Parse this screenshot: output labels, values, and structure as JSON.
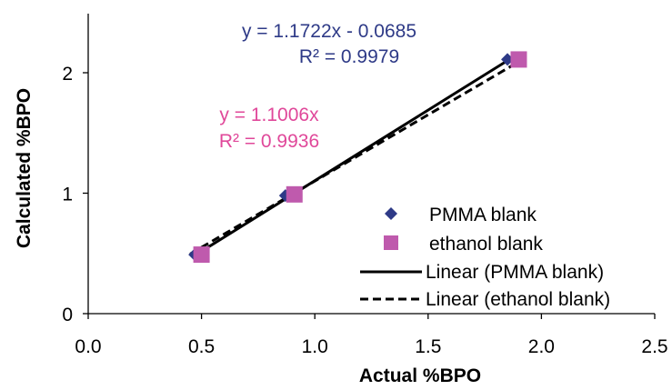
{
  "chart_data": {
    "type": "scatter",
    "title": "",
    "xlabel": "Actual %BPO",
    "ylabel": "Calculated %BPO",
    "xlim": [
      0,
      2.5
    ],
    "ylim": [
      0,
      2.5
    ],
    "x_ticks": [
      "0.0",
      "0.5",
      "1.0",
      "1.5",
      "2.0",
      "2.5"
    ],
    "y_ticks": [
      "0",
      "1",
      "2"
    ],
    "grid": false,
    "legend_position": "right",
    "series": [
      {
        "name": "PMMA blank",
        "marker": "diamond",
        "color": "#2e3a87",
        "x": [
          0.47,
          0.87,
          1.85
        ],
        "y": [
          0.49,
          0.98,
          2.11
        ]
      },
      {
        "name": "ethanol blank",
        "marker": "square",
        "color": "#bf5aad",
        "x": [
          0.5,
          0.91,
          1.9
        ],
        "y": [
          0.49,
          0.99,
          2.11
        ]
      }
    ],
    "trendlines": [
      {
        "name": "Linear (PMMA blank)",
        "style": "solid",
        "color": "#000000",
        "slope": 1.1722,
        "intercept": -0.0685,
        "x_range": [
          0.47,
          1.89
        ],
        "equation": "y = 1.1722x - 0.0685",
        "r2": "R² = 0.9979",
        "equation_color": "#2e3a87"
      },
      {
        "name": "Linear (ethanol blank)",
        "style": "dashed",
        "color": "#000000",
        "slope": 1.1006,
        "intercept": 0,
        "x_range": [
          0.45,
          1.93
        ],
        "equation": "y = 1.1006x",
        "r2": "R² = 0.9936",
        "equation_color": "#e0489a"
      }
    ]
  }
}
